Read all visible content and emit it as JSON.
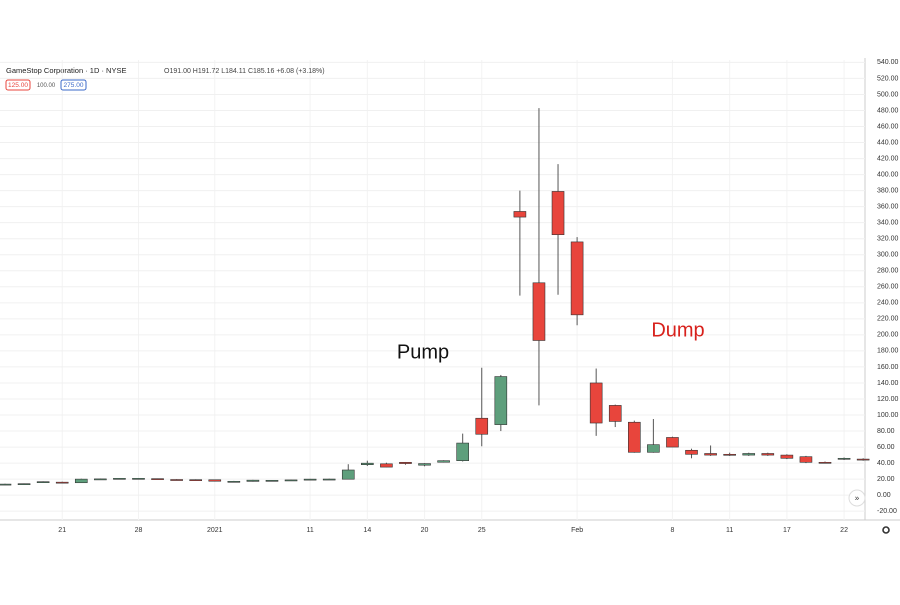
{
  "chart_data": {
    "type": "candlestick",
    "title": "GameStop Corporation · 1D · NYSE",
    "ohlc_legend": "O191.00 H191.72 L184.11 C185.16 +6.08 (+3.18%)",
    "price_tags": [
      "125.00",
      "100.00",
      "275.00"
    ],
    "annotations": [
      "Pump",
      "Dump"
    ],
    "categories": [
      null,
      null,
      null,
      "21",
      null,
      null,
      null,
      "28",
      null,
      null,
      null,
      "2021",
      null,
      null,
      null,
      null,
      "11",
      null,
      null,
      "14",
      null,
      null,
      "20",
      null,
      null,
      "25",
      null,
      null,
      null,
      null,
      "Feb",
      null,
      null,
      null,
      null,
      "8",
      null,
      null,
      "11",
      null,
      null,
      "17",
      null,
      null,
      "22",
      null
    ],
    "open": [
      13.6,
      14,
      16.5,
      16.2,
      15.5,
      20,
      20.5,
      20.5,
      20.6,
      19.5,
      19.3,
      19.2,
      17.3,
      17.2,
      18.3,
      18.5,
      19.4,
      20,
      19.9,
      38,
      39.1,
      41,
      37.4,
      41.1,
      43,
      96,
      88,
      354,
      265,
      379,
      316,
      140,
      112,
      91,
      53.5,
      72,
      56,
      52,
      51,
      50,
      52,
      50,
      48,
      41,
      45,
      45
    ],
    "high": [
      14.2,
      14.6,
      17.2,
      16.8,
      20.5,
      20.8,
      21.4,
      21.3,
      20.8,
      19.9,
      19.7,
      19.5,
      17.8,
      19.1,
      18.9,
      19.2,
      20.3,
      20.5,
      38.6,
      43,
      40.5,
      41.4,
      39.9,
      43.5,
      76.8,
      159,
      150,
      380,
      483,
      413,
      322,
      158,
      113,
      93,
      95,
      73,
      58,
      62,
      53,
      53,
      53,
      51,
      49,
      42,
      47,
      46
    ],
    "low": [
      13.2,
      13.7,
      16,
      15.6,
      15.2,
      19.8,
      20.2,
      20.1,
      19.5,
      19,
      18.8,
      17,
      16.9,
      16.9,
      17.9,
      18.3,
      19.2,
      19.7,
      19.9,
      36.4,
      34.9,
      38,
      36,
      40.7,
      42,
      61,
      80,
      249,
      112,
      250,
      212,
      74,
      85,
      53,
      53,
      60,
      46,
      49,
      49,
      49,
      49,
      45,
      40,
      39.8,
      44,
      43
    ],
    "close": [
      13.8,
      14.3,
      16.8,
      16,
      20,
      20.3,
      21,
      21,
      19.8,
      19.3,
      19.1,
      17.4,
      17.3,
      18.7,
      18.5,
      19,
      20,
      20.1,
      31.4,
      39.9,
      35,
      39.4,
      39.4,
      43,
      65,
      76,
      148,
      347,
      193,
      325,
      225,
      90,
      92,
      53.5,
      63,
      60,
      51,
      50,
      50,
      52,
      50,
      46,
      41,
      40.5,
      46,
      44
    ],
    "up_color": "#5e9f7c",
    "down_color": "#e8453c",
    "ylim": [
      -31,
      543
    ],
    "yticks": [
      {
        "value": -20,
        "label": "-20.00"
      },
      {
        "value": 0,
        "label": "0.00"
      },
      {
        "value": 20,
        "label": "20.00"
      },
      {
        "value": 40,
        "label": "40.00"
      },
      {
        "value": 60,
        "label": "60.00"
      },
      {
        "value": 80,
        "label": "80.00"
      },
      {
        "value": 100,
        "label": "100.00"
      },
      {
        "value": 120,
        "label": "120.00"
      },
      {
        "value": 140,
        "label": "140.00"
      },
      {
        "value": 160,
        "label": "160.00"
      },
      {
        "value": 180,
        "label": "180.00"
      },
      {
        "value": 200,
        "label": "200.00"
      },
      {
        "value": 220,
        "label": "220.00"
      },
      {
        "value": 240,
        "label": "240.00"
      },
      {
        "value": 260,
        "label": "260.00"
      },
      {
        "value": 280,
        "label": "280.00"
      },
      {
        "value": 300,
        "label": "300.00"
      },
      {
        "value": 320,
        "label": "320.00"
      },
      {
        "value": 340,
        "label": "340.00"
      },
      {
        "value": 360,
        "label": "360.00"
      },
      {
        "value": 380,
        "label": "380.00"
      },
      {
        "value": 400,
        "label": "400.00"
      },
      {
        "value": 420,
        "label": "420.00"
      },
      {
        "value": 440,
        "label": "440.00"
      },
      {
        "value": 460,
        "label": "460.00"
      },
      {
        "value": 480,
        "label": "480.00"
      },
      {
        "value": 500,
        "label": "500.00"
      },
      {
        "value": 520,
        "label": "520.00"
      },
      {
        "value": 540,
        "label": "540.00"
      }
    ],
    "grid": true
  }
}
